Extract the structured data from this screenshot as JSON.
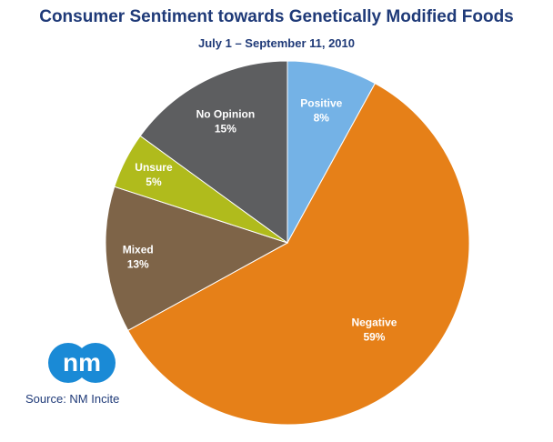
{
  "header": {
    "title": "Consumer Sentiment towards Genetically Modified Foods",
    "subtitle": "July 1 – September 11, 2010"
  },
  "footer": {
    "source": "Source: NM Incite",
    "logo_icon": "nm-logo-icon",
    "logo_color": "#1a8ad6"
  },
  "chart_data": {
    "type": "pie",
    "title": "Consumer Sentiment towards Genetically Modified Foods",
    "subtitle": "July 1 – September 11, 2010",
    "start_angle_deg": 0,
    "direction": "clockwise",
    "slices": [
      {
        "name": "Positive",
        "value": 8,
        "label": "8%",
        "color": "#74b2e6"
      },
      {
        "name": "Negative",
        "value": 59,
        "label": "59%",
        "color": "#e68018"
      },
      {
        "name": "Mixed",
        "value": 13,
        "label": "13%",
        "color": "#7e6448"
      },
      {
        "name": "Unsure",
        "value": 5,
        "label": "5%",
        "color": "#b0bb1c"
      },
      {
        "name": "No Opinion",
        "value": 15,
        "label": "15%",
        "color": "#5d5e60"
      }
    ]
  }
}
